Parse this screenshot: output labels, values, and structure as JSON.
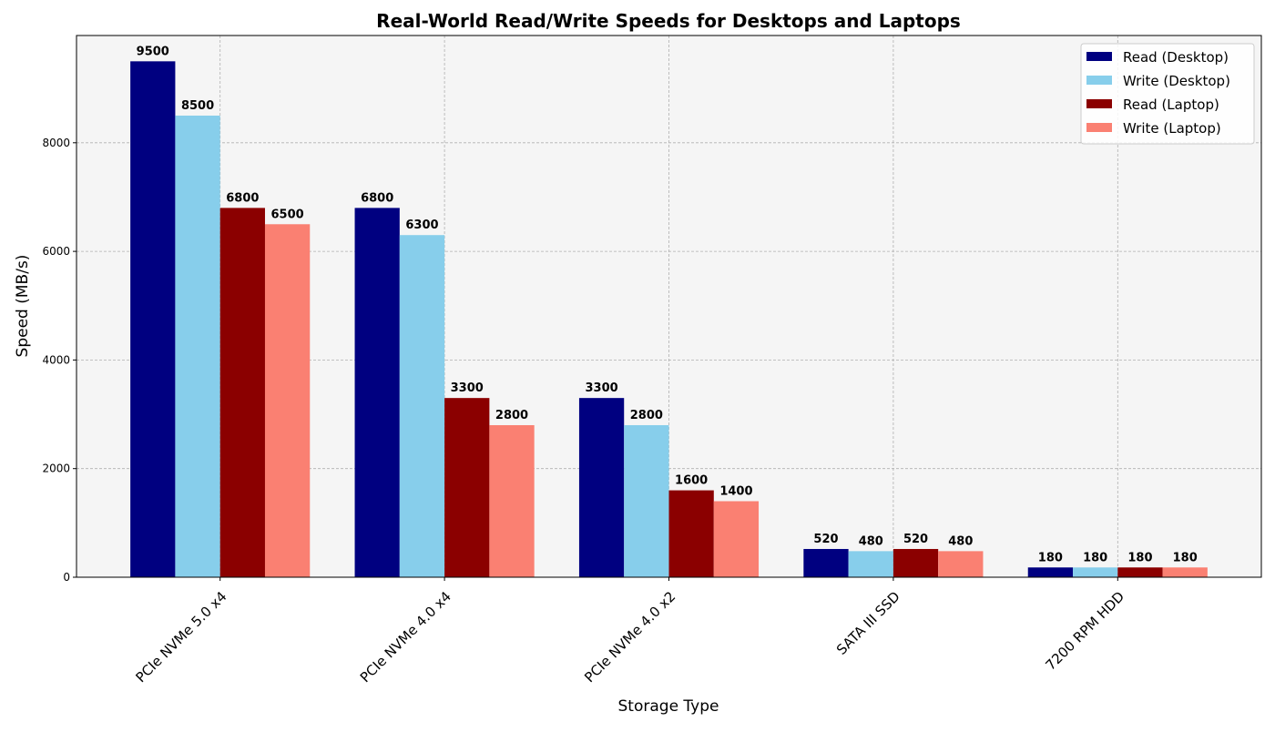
{
  "chart_data": {
    "type": "bar",
    "title": "Real-World Read/Write Speeds for Desktops and Laptops",
    "xlabel": "Storage Type",
    "ylabel": "Speed (MB/s)",
    "categories": [
      "PCIe NVMe 5.0 x4",
      "PCIe NVMe 4.0 x4",
      "PCIe NVMe 4.0 x2",
      "SATA III SSD",
      "7200 RPM HDD"
    ],
    "series": [
      {
        "name": "Read (Desktop)",
        "color": "#000080",
        "values": [
          9500,
          6800,
          3300,
          520,
          180
        ]
      },
      {
        "name": "Write (Desktop)",
        "color": "#87ceeb",
        "values": [
          8500,
          6300,
          2800,
          480,
          180
        ]
      },
      {
        "name": "Read (Laptop)",
        "color": "#8b0000",
        "values": [
          6800,
          3300,
          1600,
          520,
          180
        ]
      },
      {
        "name": "Write (Laptop)",
        "color": "#fa8072",
        "values": [
          6500,
          2800,
          1400,
          480,
          180
        ]
      }
    ],
    "ylim": [
      0,
      9975
    ],
    "yticks": [
      0,
      2000,
      4000,
      6000,
      8000
    ],
    "grid": true,
    "legend": "top-right",
    "data_labels": true,
    "background": "#f5f5f5"
  }
}
